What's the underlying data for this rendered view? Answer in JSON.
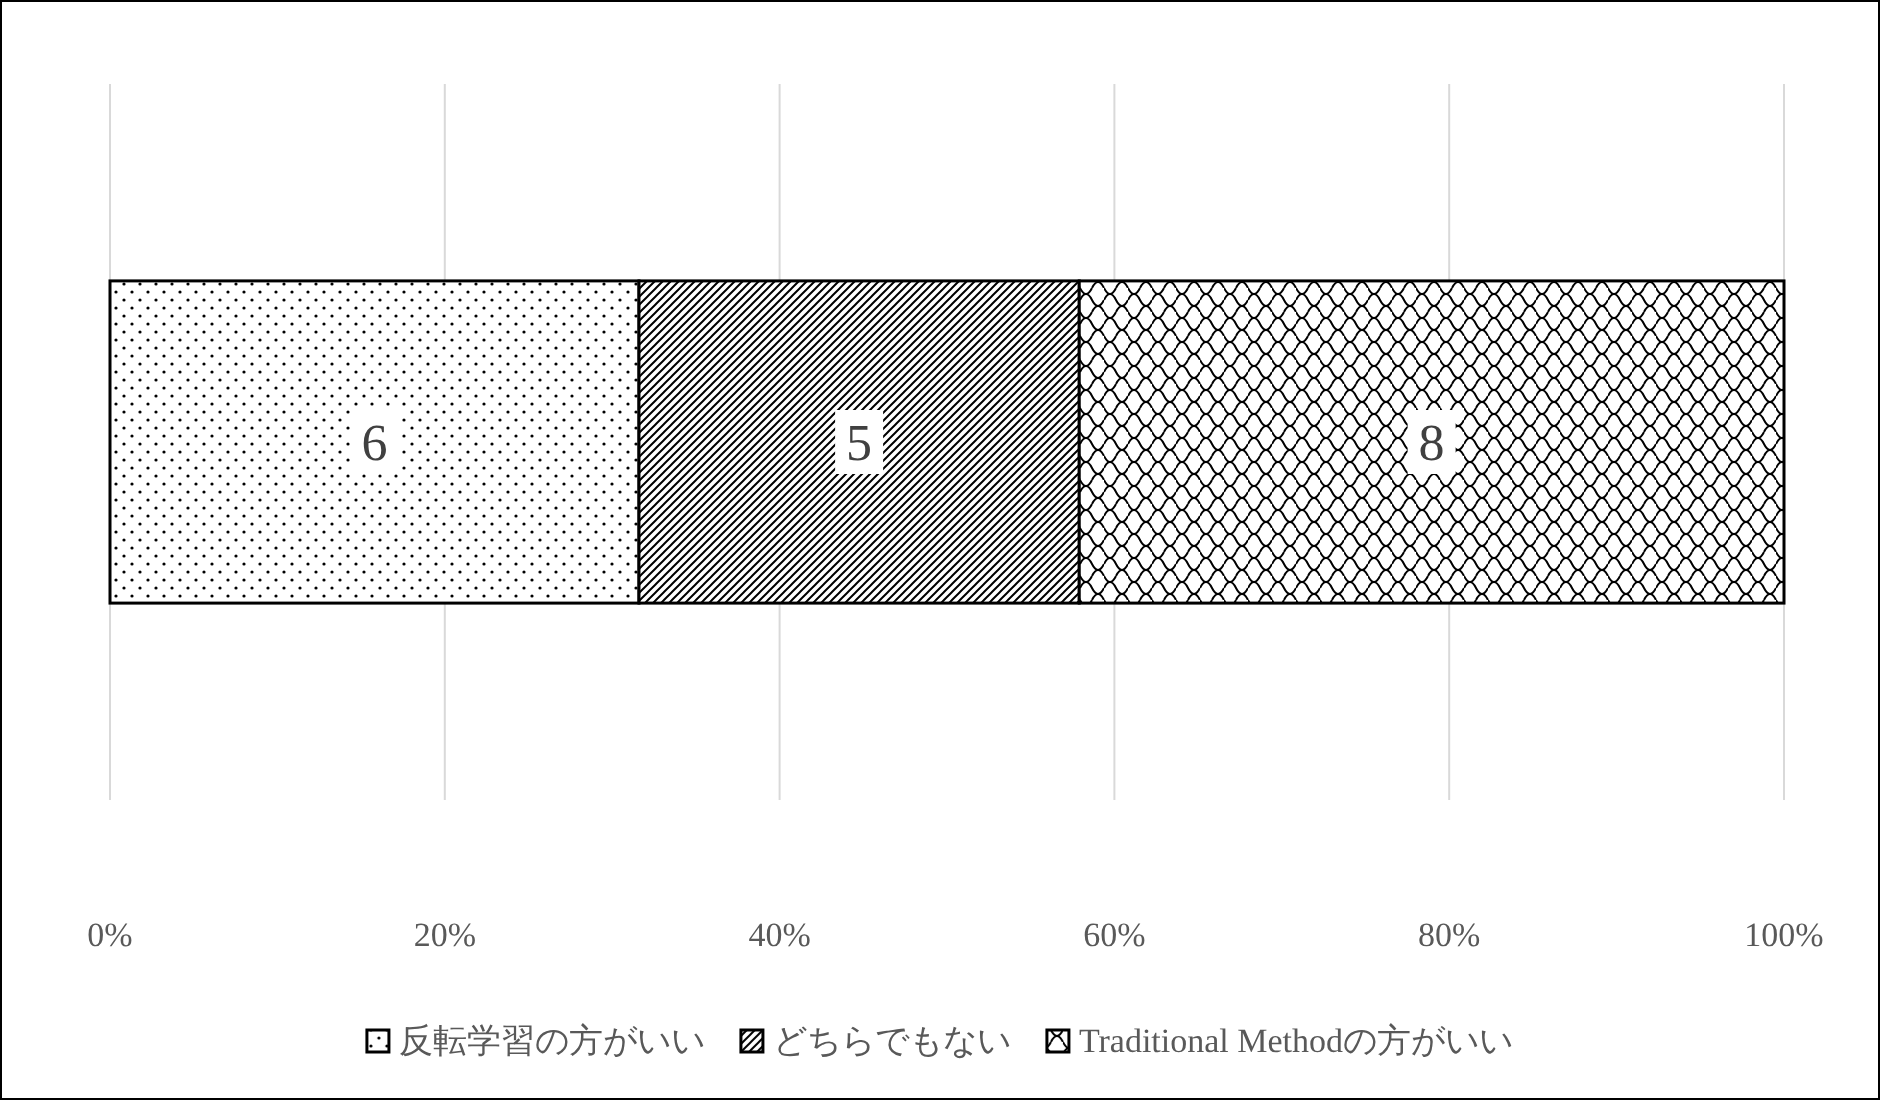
{
  "chart_data": {
    "type": "bar",
    "orientation": "horizontal",
    "stacked": true,
    "categories": [
      null
    ],
    "series": [
      {
        "name": "反転学習の方がいい",
        "color": "#000000",
        "values": [
          31.6
        ]
      },
      {
        "name": "どちらでもない",
        "color": "#000000",
        "values": [
          26.3
        ]
      },
      {
        "name": "Traditional Methodの方がいい",
        "color": "#000000",
        "values": [
          42.1
        ]
      }
    ],
    "annotations": [
      {
        "text": "6",
        "x": 15.8
      },
      {
        "text": "5",
        "x": 44.75
      },
      {
        "text": "8",
        "x": 78.95
      }
    ],
    "xlim": [
      0,
      100
    ],
    "xticks": [
      {
        "value": 0,
        "label": "0%"
      },
      {
        "value": 20,
        "label": "20%"
      },
      {
        "value": 40,
        "label": "40%"
      },
      {
        "value": 60,
        "label": "60%"
      },
      {
        "value": 80,
        "label": "80%"
      },
      {
        "value": 100,
        "label": "100%"
      }
    ],
    "grid": "x",
    "legend": "bottom"
  }
}
